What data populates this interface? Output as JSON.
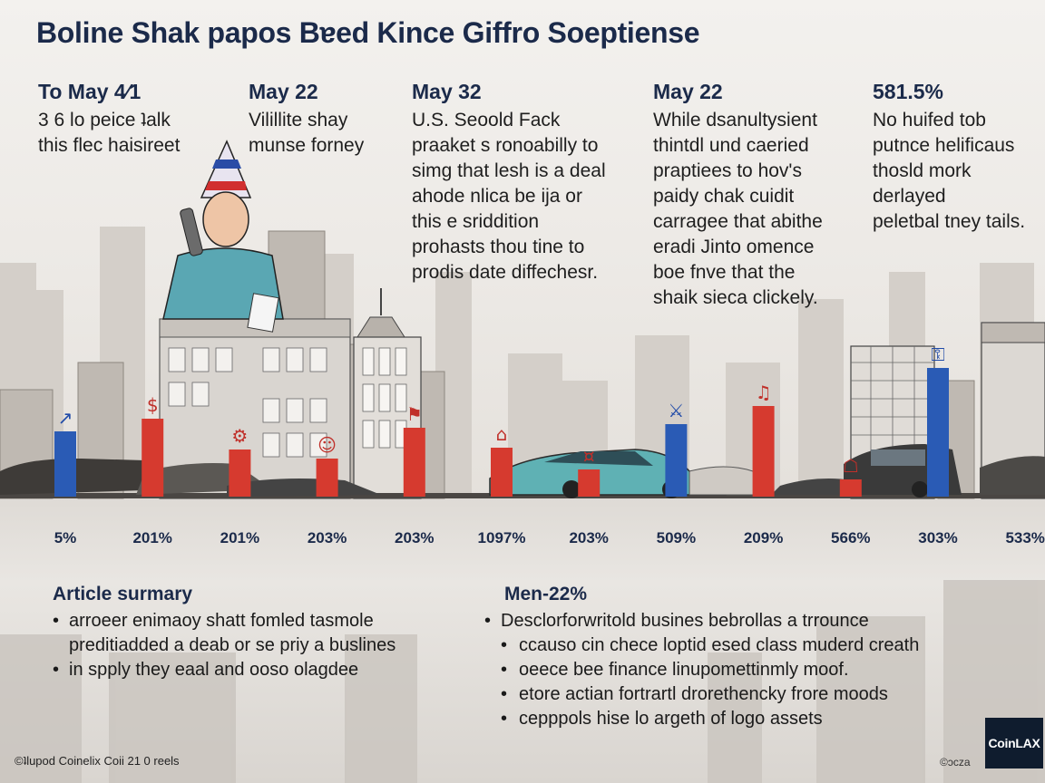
{
  "title": "Boline Shak papos Bɐed Kince Giffro Soeptiense",
  "columns": [
    {
      "heading": "To May 4⁄1",
      "lines": [
        "3 6 lo peice ʇalk",
        "this flec haisireet"
      ]
    },
    {
      "heading": "May 22",
      "lines": [
        "Vilillite shay",
        "munse forney"
      ]
    },
    {
      "heading": "May 32",
      "lines": [
        "U.S. Seoold Fack",
        "praaket s ronoabilly to",
        "sіmg that lesh is a deal",
        "ahode nlica be ija or",
        "this e sriddition",
        "prohasts thou tine to",
        "prodis date diffechesr."
      ]
    },
    {
      "heading": "May 22",
      "lines": [
        "While dsanultysient",
        "thintdl und caeried",
        "praptiees to hov's",
        "paidy chak cuidit",
        "carragee that abithe",
        "eradi Jinto omence",
        "boe fnve that the",
        "shaik sieca clickely."
      ]
    },
    {
      "heading": "581.5%",
      "lines": [
        "No huifed tob",
        "putnce helificaus",
        "thosld mork",
        "derlayed",
        "peletbal tney tails."
      ]
    }
  ],
  "chart_data": {
    "type": "bar",
    "categories": [
      "5%",
      "201%",
      "201%",
      "203%",
      "203%",
      "1097%",
      "203%",
      "509%",
      "209%",
      "566%",
      "303%",
      "533%"
    ],
    "values": [
      5,
      201,
      201,
      203,
      203,
      1097,
      203,
      509,
      209,
      566,
      303,
      533
    ],
    "bar_heights_relative": [
      0.72,
      0.86,
      0.52,
      0.42,
      0.76,
      0.54,
      0.3,
      0.8,
      1.0,
      0.19,
      1.42,
      null
    ],
    "colors": {
      "blue": "#2a5bb5",
      "red": "#d63a2f",
      "blue_dark": "#1f4aa8"
    },
    "bar_colors": [
      "blue",
      "red",
      "red",
      "red",
      "red",
      "red",
      "red",
      "blue",
      "red",
      "red",
      "blue",
      "none"
    ],
    "bar_icons": [
      "chart-icon",
      "money-bag-icon",
      "gears-icon",
      "people-icon",
      "flag-icon",
      "building-icon",
      "money-icon",
      "handshake-icon",
      "music-icon",
      "basket-icon",
      "lock-icon",
      ""
    ]
  },
  "summary_left": {
    "heading": "Article surmary",
    "items": [
      {
        "bullet": "•",
        "text": "arroeer enimaoy shatt fomled tasmole"
      },
      {
        "bullet": "",
        "text": "preditiadded a deab or se priy a buslines"
      },
      {
        "bullet": "•",
        "text": "in spply they eaal and oosо olagdee"
      }
    ]
  },
  "summary_right": {
    "heading": "Men-22%",
    "items": [
      {
        "bullet": "•",
        "text": "Desclorforwritold busines bebrollas a trrounce",
        "sub": false
      },
      {
        "bullet": "•",
        "text": "ccauso cin chece loptid esed class muderd creath",
        "sub": true
      },
      {
        "bullet": "•",
        "text": "oeece bee finance linupomettinmly moof.",
        "sub": true
      },
      {
        "bullet": "•",
        "text": "etore actian fortrartl drorethencky frore moods",
        "sub": true
      },
      {
        "bullet": "•",
        "text": "cepppols hise lo argeth of logo assets",
        "sub": true
      }
    ]
  },
  "credit_left": "©ʇlupod Coinelix Coii 21 0 reels",
  "credit_right": "©ɔcza",
  "logo": "CoinLAX"
}
